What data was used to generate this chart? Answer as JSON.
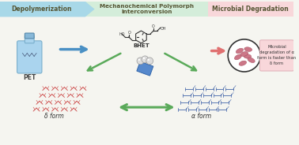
{
  "bg_color": "#f5f5f0",
  "header_left_color": "#a8d8e8",
  "header_mid_color": "#d4edda",
  "header_right_color": "#f8d7da",
  "header_texts": [
    "Depolymerization",
    "Mechanochemical Polymorph\nInterconversion",
    "Microbial Degradation"
  ],
  "header_text_color": "#555533",
  "arrow_blue_color": "#4a90c4",
  "arrow_red_color": "#e07070",
  "arrow_green_color": "#5aaa5a",
  "pet_label": "PET",
  "bhet_label": "BHET",
  "delta_label": "δ form",
  "alpha_label": "α form",
  "box_text": "Microbial\ndegradation of α\nform is faster than\nδ form",
  "crystal_red_color": "#cc4444",
  "crystal_blue_color": "#4466aa",
  "milling_color": "#5588cc",
  "bacteria_color": "#cc7788"
}
